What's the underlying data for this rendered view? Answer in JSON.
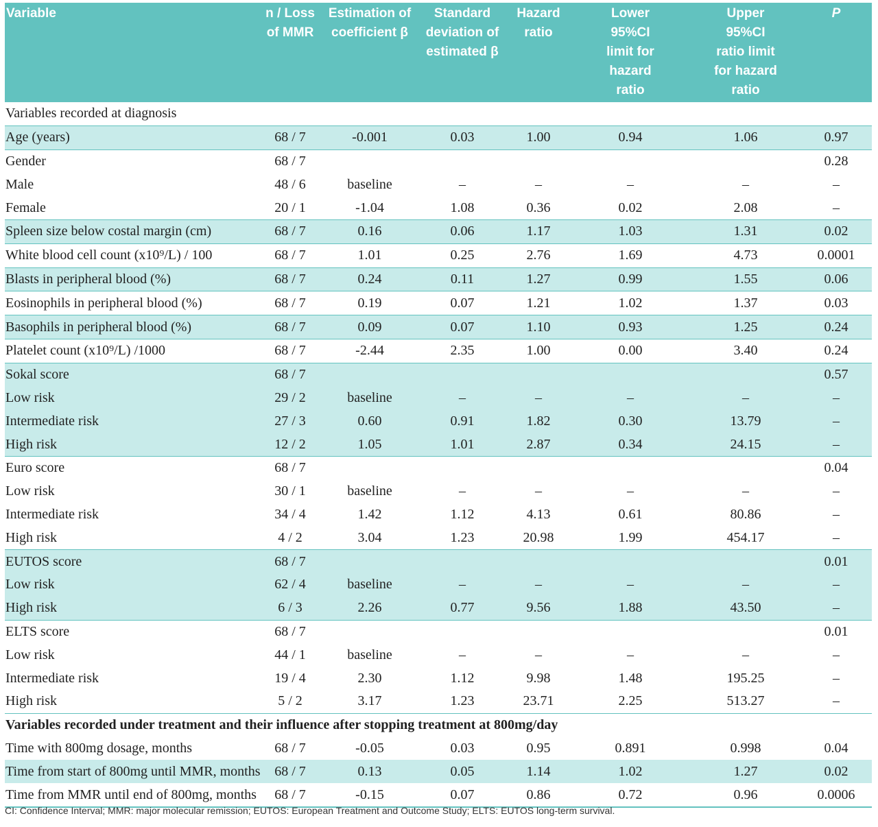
{
  "table": {
    "headers": [
      "Variable",
      "n / Loss\nof MMR",
      "Estimation of\ncoefficient β",
      "Standard\ndeviation of\nestimated β",
      "Hazard\nratio",
      "Lower\n95%CI\nlimit for\nhazard\nratio",
      "Upper\n95%CI\nratio limit\nfor hazard\nratio",
      "P"
    ],
    "rows": [
      {
        "cells": [
          "Variables recorded at diagnosis",
          "",
          "",
          "",
          "",
          "",
          "",
          ""
        ],
        "shade": false,
        "style": "section"
      },
      {
        "cells": [
          "Age (years)",
          "68 / 7",
          "-0.001",
          "0.03",
          "1.00",
          "0.94",
          "1.06",
          "0.97"
        ],
        "shade": true
      },
      {
        "cells": [
          "Gender",
          "68 / 7",
          "",
          "",
          "",
          "",
          "",
          "0.28"
        ],
        "shade": false
      },
      {
        "cells": [
          "Male",
          "48 / 6",
          "baseline",
          "–",
          "–",
          "–",
          "–",
          "–"
        ],
        "shade": false
      },
      {
        "cells": [
          "Female",
          "20 / 1",
          "-1.04",
          "1.08",
          "0.36",
          "0.02",
          "2.08",
          "–"
        ],
        "shade": false
      },
      {
        "cells": [
          "Spleen size below costal margin (cm)",
          "68 / 7",
          "0.16",
          "0.06",
          "1.17",
          "1.03",
          "1.31",
          "0.02"
        ],
        "shade": true
      },
      {
        "cells": [
          "White blood cell count (x10⁹/L) / 100",
          "68 / 7",
          "1.01",
          "0.25",
          "2.76",
          "1.69",
          "4.73",
          "0.0001"
        ],
        "shade": false
      },
      {
        "cells": [
          "Blasts in peripheral blood (%)",
          "68 / 7",
          "0.24",
          "0.11",
          "1.27",
          "0.99",
          "1.55",
          "0.06"
        ],
        "shade": true
      },
      {
        "cells": [
          "Eosinophils in peripheral blood (%)",
          "68 / 7",
          "0.19",
          "0.07",
          "1.21",
          "1.02",
          "1.37",
          "0.03"
        ],
        "shade": false
      },
      {
        "cells": [
          "Basophils in peripheral blood (%)",
          "68 / 7",
          "0.09",
          "0.07",
          "1.10",
          "0.93",
          "1.25",
          "0.24"
        ],
        "shade": true
      },
      {
        "cells": [
          "Platelet count (x10⁹/L) /1000",
          "68 / 7",
          "-2.44",
          "2.35",
          "1.00",
          "0.00",
          "3.40",
          "0.24"
        ],
        "shade": false
      },
      {
        "cells": [
          "Sokal score",
          "68 / 7",
          "",
          "",
          "",
          "",
          "",
          "0.57"
        ],
        "shade": true
      },
      {
        "cells": [
          "Low risk",
          "29 / 2",
          "baseline",
          "–",
          "–",
          "–",
          "–",
          "–"
        ],
        "shade": true
      },
      {
        "cells": [
          "Intermediate risk",
          "27 / 3",
          "0.60",
          "0.91",
          "1.82",
          "0.30",
          "13.79",
          "–"
        ],
        "shade": true
      },
      {
        "cells": [
          "High risk",
          "12 / 2",
          "1.05",
          "1.01",
          "2.87",
          "0.34",
          "24.15",
          "–"
        ],
        "shade": true
      },
      {
        "cells": [
          "Euro score",
          "68 / 7",
          "",
          "",
          "",
          "",
          "",
          "0.04"
        ],
        "shade": false
      },
      {
        "cells": [
          "Low risk",
          "30 / 1",
          "baseline",
          "–",
          "–",
          "–",
          "–",
          "–"
        ],
        "shade": false
      },
      {
        "cells": [
          "Intermediate risk",
          "34 / 4",
          "1.42",
          "1.12",
          "4.13",
          "0.61",
          "80.86",
          "–"
        ],
        "shade": false
      },
      {
        "cells": [
          "High risk",
          "4 / 2",
          "3.04",
          "1.23",
          "20.98",
          "1.99",
          "454.17",
          "–"
        ],
        "shade": false
      },
      {
        "cells": [
          "EUTOS score",
          "68 / 7",
          "",
          "",
          "",
          "",
          "",
          "0.01"
        ],
        "shade": true
      },
      {
        "cells": [
          "Low risk",
          "62 / 4",
          "baseline",
          "–",
          "–",
          "–",
          "–",
          "–"
        ],
        "shade": true
      },
      {
        "cells": [
          "High risk",
          "6 / 3",
          "2.26",
          "0.77",
          "9.56",
          "1.88",
          "43.50",
          "–"
        ],
        "shade": true
      },
      {
        "cells": [
          "ELTS score",
          "68 / 7",
          "",
          "",
          "",
          "",
          "",
          "0.01"
        ],
        "shade": false
      },
      {
        "cells": [
          "Low risk",
          "44 / 1",
          "baseline",
          "–",
          "–",
          "–",
          "–",
          "–"
        ],
        "shade": false
      },
      {
        "cells": [
          "Intermediate risk",
          "19 / 4",
          "2.30",
          "1.12",
          "9.98",
          "1.48",
          "195.25",
          "–"
        ],
        "shade": false
      },
      {
        "cells": [
          "High risk",
          "5 / 2",
          "3.17",
          "1.23",
          "23.71",
          "2.25",
          "513.27",
          "–"
        ],
        "shade": false
      },
      {
        "cells": [
          "Variables recorded under treatment and their influence after stopping treatment at 800mg/day",
          "",
          "",
          "",
          "",
          "",
          "",
          ""
        ],
        "shade": false,
        "style": "bold"
      },
      {
        "cells": [
          "Time with 800mg dosage, months",
          "68 / 7",
          "-0.05",
          "0.03",
          "0.95",
          "0.891",
          "0.998",
          "0.04"
        ],
        "shade": false
      },
      {
        "cells": [
          "Time from start of 800mg until MMR, months",
          "68 / 7",
          "0.13",
          "0.05",
          "1.14",
          "1.02",
          "1.27",
          "0.02"
        ],
        "shade": true
      },
      {
        "cells": [
          "Time from MMR until end of 800mg, months",
          "68 / 7",
          "-0.15",
          "0.07",
          "0.86",
          "0.72",
          "0.96",
          "0.0006"
        ],
        "shade": false
      }
    ]
  },
  "footnote": "CI: Confidence Interval; MMR: major molecular remission; EUTOS: European Treatment and Outcome Study; ELTS: EUTOS long-term survival.",
  "colors": {
    "header_bg": "#62c2bf",
    "row_shade": "#c8ebea"
  }
}
